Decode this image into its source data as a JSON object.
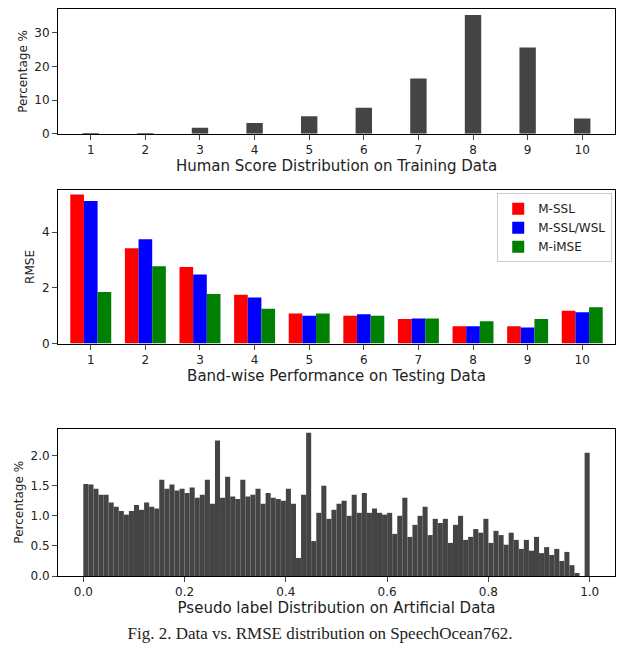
{
  "caption": "Fig. 2. Data vs. RMSE distribution on SpeechOcean762.",
  "chart_data": [
    {
      "type": "bar",
      "x_label": "Human Score Distribution on Training Data",
      "y_label": "Percentage %",
      "x": [
        1,
        2,
        3,
        4,
        5,
        6,
        7,
        8,
        9,
        10
      ],
      "values": [
        0.2,
        0.2,
        1.8,
        3.2,
        5.2,
        7.7,
        16.4,
        35.2,
        25.6,
        4.5
      ],
      "color": "#444444",
      "xlim": [
        0.4,
        10.6
      ],
      "xticks": [
        1,
        2,
        3,
        4,
        5,
        6,
        7,
        8,
        9,
        10
      ],
      "ylim": [
        0,
        37
      ],
      "yticks": [
        0,
        10,
        20,
        30
      ]
    },
    {
      "type": "bar",
      "x_label": "Band-wise Performance on Testing Data",
      "y_label": "RMSE",
      "x": [
        1,
        2,
        3,
        4,
        5,
        6,
        7,
        8,
        9,
        10
      ],
      "series": [
        {
          "name": "M-SSL",
          "color": "#ff0000",
          "values": [
            5.35,
            3.42,
            2.75,
            1.75,
            1.08,
            1.0,
            0.88,
            0.62,
            0.62,
            1.18
          ]
        },
        {
          "name": "M-SSL/WSL",
          "color": "#0000ff",
          "values": [
            5.12,
            3.75,
            2.48,
            1.65,
            1.0,
            1.05,
            0.9,
            0.62,
            0.58,
            1.12
          ]
        },
        {
          "name": "M-iMSE",
          "color": "#008000",
          "values": [
            1.85,
            2.78,
            1.78,
            1.25,
            1.08,
            1.0,
            0.9,
            0.8,
            0.88,
            1.3
          ]
        }
      ],
      "legend": "upper right",
      "xlim": [
        0.4,
        10.6
      ],
      "xticks": [
        1,
        2,
        3,
        4,
        5,
        6,
        7,
        8,
        9,
        10
      ],
      "ylim": [
        0,
        5.5
      ],
      "yticks": [
        0,
        2,
        4
      ]
    },
    {
      "type": "histogram",
      "x_label": "Pseudo label Distribution on Artificial Data",
      "y_label": "Percentage %",
      "bins": [
        0,
        0.01,
        0.02,
        0.03,
        0.04,
        0.05,
        0.06,
        0.07,
        0.08,
        0.09,
        0.1,
        0.11,
        0.12,
        0.13,
        0.14,
        0.15,
        0.16,
        0.17,
        0.18,
        0.19,
        0.2,
        0.21,
        0.22,
        0.23,
        0.24,
        0.25,
        0.26,
        0.27,
        0.28,
        0.29,
        0.3,
        0.31,
        0.32,
        0.33,
        0.34,
        0.35,
        0.36,
        0.37,
        0.38,
        0.39,
        0.4,
        0.41,
        0.42,
        0.43,
        0.44,
        0.45,
        0.46,
        0.47,
        0.48,
        0.49,
        0.5,
        0.51,
        0.52,
        0.53,
        0.54,
        0.55,
        0.56,
        0.57,
        0.58,
        0.59,
        0.6,
        0.61,
        0.62,
        0.63,
        0.64,
        0.65,
        0.66,
        0.67,
        0.68,
        0.69,
        0.7,
        0.71,
        0.72,
        0.73,
        0.74,
        0.75,
        0.76,
        0.77,
        0.78,
        0.79,
        0.8,
        0.81,
        0.82,
        0.83,
        0.84,
        0.85,
        0.86,
        0.87,
        0.88,
        0.89,
        0.9,
        0.91,
        0.92,
        0.93,
        0.94,
        0.95,
        0.96,
        0.97,
        0.98,
        0.99,
        1.0
      ],
      "values": [
        1.53,
        1.52,
        1.45,
        1.35,
        1.35,
        1.22,
        1.15,
        1.08,
        1.02,
        1.08,
        1.18,
        1.1,
        1.22,
        1.15,
        1.12,
        1.6,
        1.45,
        1.52,
        1.42,
        1.45,
        1.38,
        1.47,
        1.3,
        1.35,
        1.6,
        1.2,
        2.25,
        1.3,
        1.65,
        1.32,
        1.28,
        1.6,
        1.32,
        1.35,
        1.45,
        1.2,
        1.38,
        1.3,
        1.28,
        1.25,
        1.45,
        1.2,
        0.3,
        1.35,
        2.38,
        0.58,
        1.05,
        1.5,
        0.95,
        1.1,
        1.2,
        1.25,
        1.0,
        1.35,
        1.05,
        1.38,
        1.05,
        1.12,
        1.05,
        1.02,
        1.05,
        0.7,
        1.0,
        1.3,
        0.65,
        0.85,
        1.0,
        1.15,
        0.68,
        0.95,
        0.88,
        0.95,
        0.55,
        0.85,
        1.0,
        0.6,
        0.65,
        0.78,
        0.72,
        0.95,
        0.55,
        0.75,
        0.68,
        0.52,
        0.72,
        0.6,
        0.45,
        0.6,
        0.42,
        0.65,
        0.38,
        0.48,
        0.35,
        0.45,
        0.25,
        0.4,
        0.18,
        0.05,
        0.0,
        2.05
      ],
      "color": "#444444",
      "xlim": [
        -0.05,
        1.05
      ],
      "xticks": [
        {
          "value": 0,
          "label": "0.0"
        },
        0.2,
        0.4,
        0.6,
        0.8,
        {
          "value": 1,
          "label": "1.0"
        }
      ],
      "ylim": [
        0,
        2.45
      ],
      "yticks": [
        {
          "value": 0,
          "label": "0.0"
        },
        0.5,
        {
          "value": 1,
          "label": "1.0"
        },
        1.5,
        {
          "value": 2,
          "label": "2.0"
        }
      ]
    }
  ]
}
